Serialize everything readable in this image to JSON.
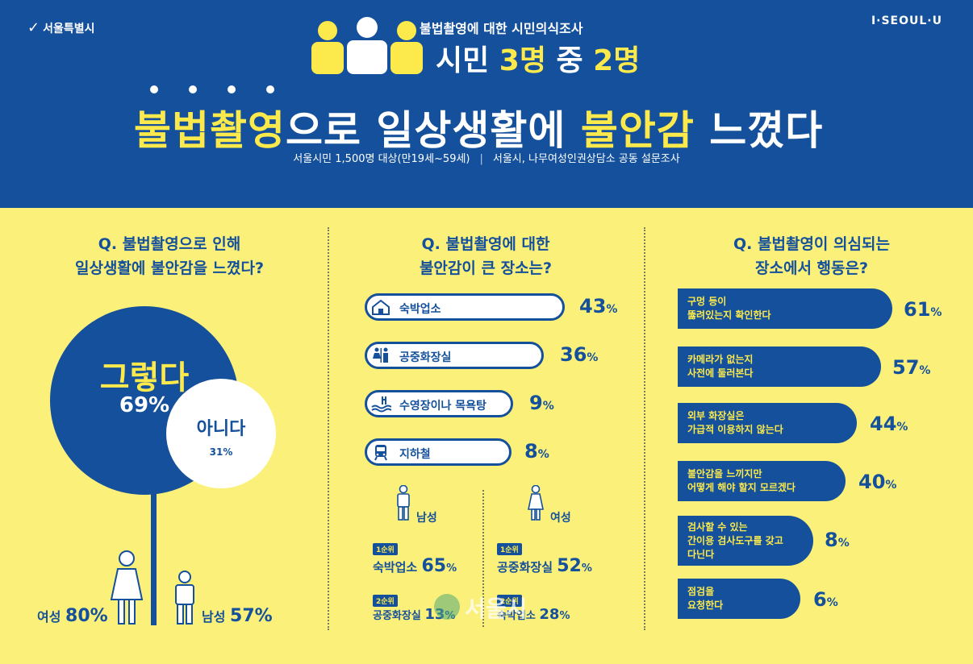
{
  "header": {
    "logo_left": "서울특별시",
    "logo_right": "I·SEOUL·U",
    "subtitle": "불법촬영에 대한 시민의식조사",
    "headline_prefix": "시민 ",
    "headline_num1": "3명",
    "headline_mid": " 중 ",
    "headline_num2": "2명",
    "title_part1": "불법촬영",
    "title_part2": "으로 일상생활에 ",
    "title_part3": "불안감",
    "title_part4": " 느꼈다",
    "source_left": "서울시민 1,500명 대상(만19세~59세)",
    "source_right": "서울시, 나무여성인권상담소 공동 설문조사"
  },
  "q1": {
    "question_line1": "Q. 불법촬영으로 인해",
    "question_line2": "일상생활에 불안감을 느꼈다?",
    "yes_label": "그렇다",
    "yes_pct": "69%",
    "no_label": "아니다",
    "no_pct": "31%",
    "female_label": "여성",
    "female_pct": "80%",
    "male_label": "남성",
    "male_pct": "57%"
  },
  "q2": {
    "question_line1": "Q. 불법촬영에 대한",
    "question_line2": "불안감이 큰 장소는?",
    "items": [
      {
        "label": "숙박업소",
        "pct": "43",
        "icon": "house-icon"
      },
      {
        "label": "공중화장실",
        "pct": "36",
        "icon": "restroom-icon"
      },
      {
        "label": "수영장이나 목욕탕",
        "pct": "9",
        "icon": "pool-icon"
      },
      {
        "label": "지하철",
        "pct": "8",
        "icon": "subway-icon"
      }
    ],
    "values": [
      43,
      36,
      9,
      8
    ],
    "unit": "%",
    "male": {
      "label": "남성",
      "rank1_badge": "1순위",
      "rank1_place": "숙박업소",
      "rank1_pct": "65",
      "rank2_badge": "2순위",
      "rank2_place": "공중화장실",
      "rank2_pct": "13"
    },
    "female": {
      "label": "여성",
      "rank1_badge": "1순위",
      "rank1_place": "공중화장실",
      "rank1_pct": "52",
      "rank2_badge": "2순위",
      "rank2_place": "숙박업소",
      "rank2_pct": "28"
    }
  },
  "q3": {
    "question_line1": "Q. 불법촬영이 의심되는",
    "question_line2": "장소에서 행동은?",
    "items": [
      {
        "line1": "구멍 등이",
        "line2": "뚫려있는지 확인한다",
        "line3": "",
        "pct": "61"
      },
      {
        "line1": "카메라가 없는지",
        "line2": "사전에 둘러본다",
        "line3": "",
        "pct": "57"
      },
      {
        "line1": "외부 화장실은",
        "line2": "가급적 이용하지 않는다",
        "line3": "",
        "pct": "44"
      },
      {
        "line1": "불안감을 느끼지만",
        "line2": "어떻게 해야 할지 모르겠다",
        "line3": "",
        "pct": "40"
      },
      {
        "line1": "검사할 수 있는",
        "line2": "간이용 검사도구를 갖고",
        "line3": "다닌다",
        "pct": "8"
      },
      {
        "line1": "점검을",
        "line2": "요청한다",
        "line3": "",
        "pct": "6"
      }
    ],
    "values": [
      61,
      57,
      44,
      40,
      8,
      6
    ],
    "unit": "%"
  },
  "watermark": "서울시",
  "colors": {
    "navy": "#14509b",
    "yellow": "#fce94b",
    "body_bg": "#fbf07a"
  }
}
